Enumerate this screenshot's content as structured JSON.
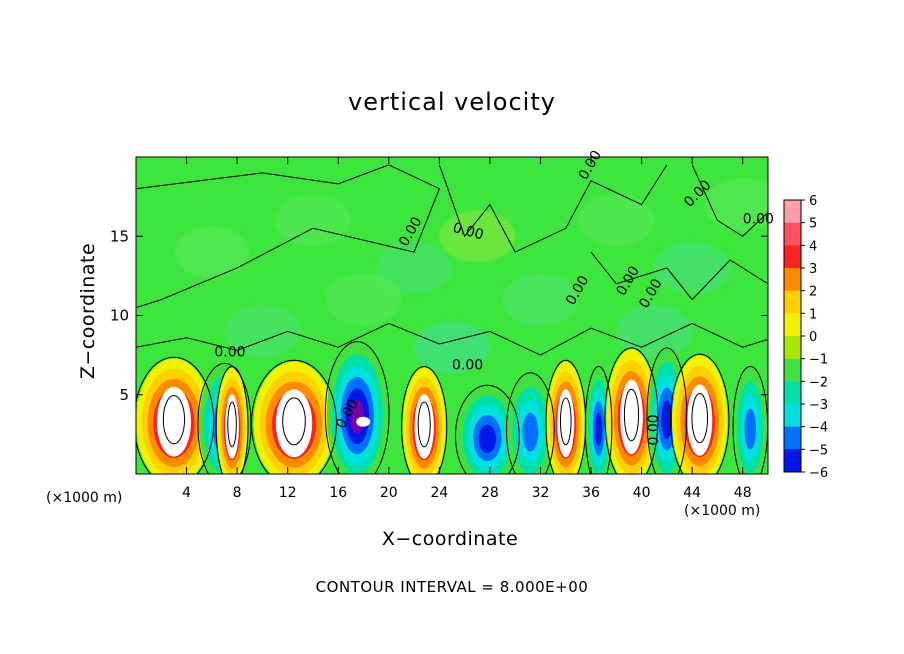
{
  "chart_data": {
    "type": "heatmap",
    "title": "vertical velocity",
    "xlabel": "X−coordinate",
    "ylabel": "Z−coordinate",
    "x_unit_left": "(×1000 m)",
    "x_unit_right": "(×1000 m)",
    "x_ticks": [
      4,
      8,
      12,
      16,
      20,
      24,
      28,
      32,
      36,
      40,
      44,
      48
    ],
    "y_ticks": [
      5,
      10,
      15
    ],
    "xlim": [
      0,
      50
    ],
    "ylim": [
      0,
      20
    ],
    "footnote": "CONTOUR INTERVAL = 8.000E+00",
    "contour_label": "0.00",
    "colorbar": {
      "ticks": [
        "6",
        "5",
        "4",
        "3",
        "2",
        "1",
        "0",
        "−1",
        "−2",
        "−3",
        "−4",
        "−5",
        "−6"
      ],
      "colors": [
        "#ff9ea8",
        "#ff5060",
        "#ff2020",
        "#ff8a00",
        "#ffd000",
        "#f2f200",
        "#a8e800",
        "#40e040",
        "#00e0a8",
        "#00e0e0",
        "#0070ff",
        "#0018e8",
        "#7000b0"
      ]
    },
    "background_color": "#3ce63c",
    "cells": [
      {
        "x": 3.0,
        "z": 3.3,
        "w": 3.0,
        "peak": 6
      },
      {
        "x": 7.0,
        "z": 3.1,
        "w": 2.0,
        "peak": -5
      },
      {
        "x": 7.6,
        "z": 3.0,
        "w": 1.2,
        "peak": 6
      },
      {
        "x": 12.5,
        "z": 3.2,
        "w": 3.2,
        "peak": 6
      },
      {
        "x": 17.5,
        "z": 3.8,
        "w": 2.4,
        "peak": -6
      },
      {
        "x": 22.8,
        "z": 3.0,
        "w": 1.7,
        "peak": 6
      },
      {
        "x": 27.8,
        "z": 2.4,
        "w": 2.4,
        "peak": -5
      },
      {
        "x": 31.2,
        "z": 2.8,
        "w": 1.8,
        "peak": -4
      },
      {
        "x": 34.0,
        "z": 3.2,
        "w": 1.5,
        "peak": 6
      },
      {
        "x": 36.6,
        "z": 3.0,
        "w": 1.0,
        "peak": -5
      },
      {
        "x": 39.2,
        "z": 3.6,
        "w": 2.0,
        "peak": 6
      },
      {
        "x": 42.0,
        "z": 3.6,
        "w": 1.5,
        "peak": -5
      },
      {
        "x": 44.6,
        "z": 3.4,
        "w": 2.2,
        "peak": 6
      },
      {
        "x": 48.6,
        "z": 3.0,
        "w": 1.3,
        "peak": -4
      }
    ]
  }
}
